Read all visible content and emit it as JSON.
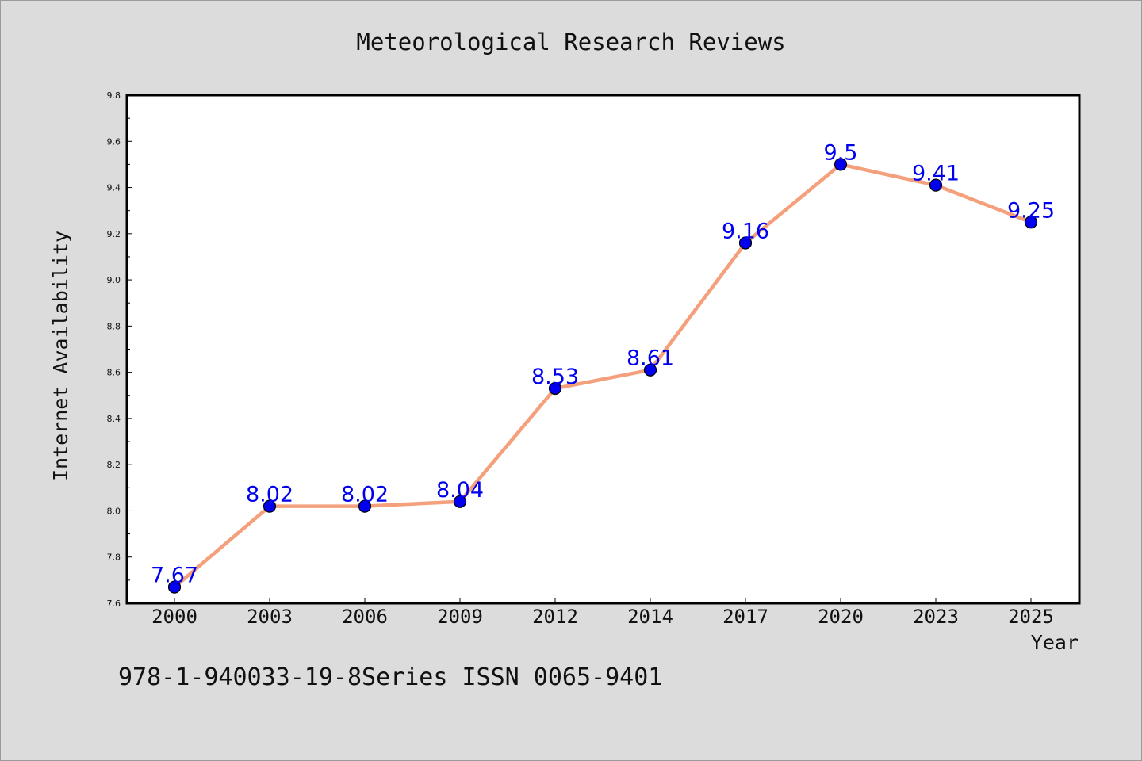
{
  "chart_data": {
    "type": "line",
    "title": "Meteorological Research Reviews",
    "xlabel": "Year",
    "ylabel": "Internet Availability",
    "categories": [
      "2000",
      "2003",
      "2006",
      "2009",
      "2012",
      "2014",
      "2017",
      "2020",
      "2023",
      "2025"
    ],
    "values": [
      7.67,
      8.02,
      8.02,
      8.04,
      8.53,
      8.61,
      9.16,
      9.5,
      9.41,
      9.25
    ],
    "data_labels": [
      "7.67",
      "8.02",
      "8.02",
      "8.04",
      "8.53",
      "8.61",
      "9.16",
      "9.5",
      "9.41",
      "9.25"
    ],
    "ylim": [
      7.6,
      9.8
    ],
    "yticks": [
      "7.6",
      "7.8",
      "8.0",
      "8.2",
      "8.4",
      "8.6",
      "8.8",
      "9.0",
      "9.2",
      "9.4",
      "9.6",
      "9.8"
    ],
    "grid": false,
    "colors": {
      "line": "#f4a07c",
      "marker": "#0000ee",
      "marker_edge": "#000000",
      "data_label": "#0000ee",
      "plot_background": "#ffffff",
      "figure_background": "#dcdcdc"
    }
  },
  "footer": {
    "text": "978-1-940033-19-8Series ISSN 0065-9401"
  }
}
